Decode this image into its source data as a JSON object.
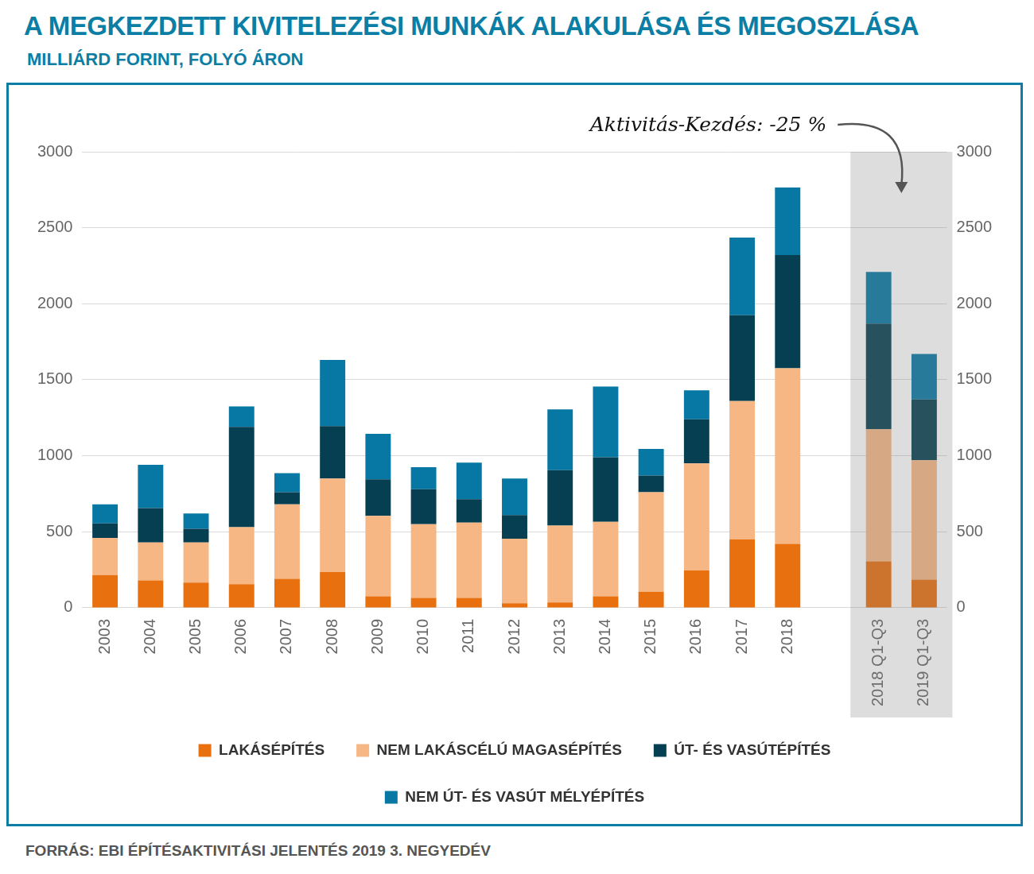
{
  "chart_data": {
    "type": "bar",
    "title": "A MEGKEZDETT KIVITELEZÉSI MUNKÁK ALAKULÁSA ÉS MEGOSZLÁSA",
    "subtitle": "MILLIÁRD FORINT, FOLYÓ ÁRON",
    "source": "FORRÁS: EBI ÉPÍTÉSAKTIVITÁSI JELENTÉS 2019 3. NEGYEDÉV",
    "annotation": "Aktivitás-Kezdés: -25 %",
    "categories": [
      "2003",
      "2004",
      "2005",
      "2006",
      "2007",
      "2008",
      "2009",
      "2010",
      "2011",
      "2012",
      "2013",
      "2014",
      "2015",
      "2016",
      "2017",
      "2018",
      null,
      "2018 Q1-Q3",
      "2019 Q1-Q3"
    ],
    "series": [
      {
        "name": "LAKÁSÉPÍTÉS",
        "color": "#e8700f",
        "values": [
          215,
          180,
          165,
          155,
          190,
          235,
          75,
          65,
          65,
          30,
          35,
          75,
          105,
          245,
          450,
          420,
          null,
          305,
          185
        ]
      },
      {
        "name": "NEM LAKÁSCÉLÚ MAGASÉPÍTÉS",
        "color": "#f6b785",
        "values": [
          245,
          250,
          265,
          375,
          490,
          615,
          530,
          485,
          495,
          425,
          505,
          490,
          655,
          705,
          910,
          1155,
          null,
          870,
          785
        ]
      },
      {
        "name": "ÚT- ÉS VASÚTÉPÍTÉS",
        "color": "#073f52",
        "values": [
          95,
          225,
          90,
          660,
          80,
          345,
          240,
          230,
          155,
          155,
          365,
          425,
          110,
          290,
          565,
          745,
          null,
          695,
          400
        ]
      },
      {
        "name": "NEM ÚT- ÉS VASÚT MÉLYÉPÍTÉS",
        "color": "#0778a3",
        "values": [
          125,
          285,
          100,
          135,
          125,
          435,
          300,
          145,
          240,
          240,
          400,
          465,
          175,
          190,
          510,
          445,
          null,
          340,
          300
        ]
      }
    ],
    "ylim": [
      0,
      3000
    ],
    "yticks": [
      0,
      500,
      1000,
      1500,
      2000,
      2500,
      3000
    ],
    "y2lim": [
      0,
      3000
    ],
    "y2ticks": [
      0,
      500,
      1000,
      1500,
      2000,
      2500,
      3000
    ],
    "stacked": true,
    "grid": true,
    "legend": "bottom"
  }
}
